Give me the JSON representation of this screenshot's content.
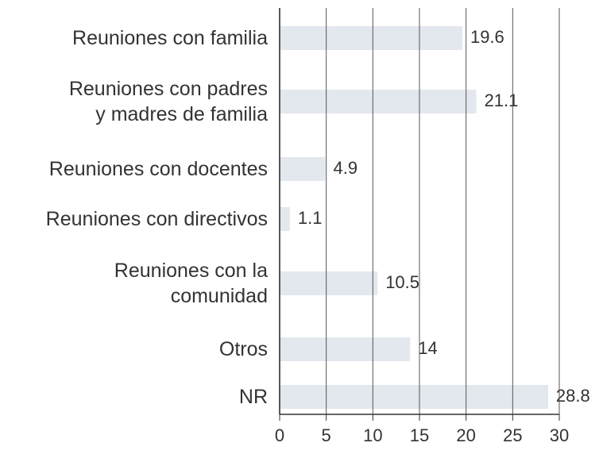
{
  "chart_data": {
    "type": "barh",
    "categories": [
      "Reuniones con familia",
      "Reuniones con padres\ny madres de familia",
      "Reuniones con docentes",
      "Reuniones con directivos",
      "Reuniones con la\ncomunidad",
      "Otros",
      "NR"
    ],
    "values": [
      19.6,
      21.1,
      4.9,
      1.1,
      10.5,
      14,
      28.8
    ],
    "color": "#e3e7ee",
    "xlim": [
      0,
      30
    ],
    "xticks": [
      0,
      5,
      10,
      15,
      20,
      25,
      30
    ],
    "grid": true
  }
}
